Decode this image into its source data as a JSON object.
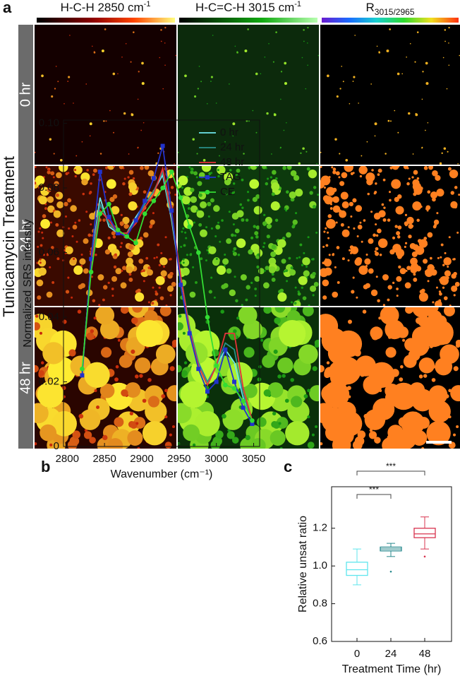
{
  "panel_a": {
    "label": "a",
    "columns": [
      {
        "text": "H-C-H 2850 cm",
        "sup": "-1"
      },
      {
        "text": "H-C=C-H 3015 cm",
        "sup": "-1"
      },
      {
        "text": "R",
        "sub": "3015/2965"
      }
    ],
    "rows": [
      "0 hr",
      "24 hr",
      "48 hr"
    ],
    "side_label": "Tunicamycin Treatment"
  },
  "chart_data": [
    {
      "type": "line",
      "label": "b",
      "x": [
        2820,
        2832,
        2844,
        2856,
        2868,
        2880,
        2892,
        2904,
        2916,
        2928,
        2940,
        2952,
        2964,
        2976,
        2988,
        3000,
        3012,
        3024,
        3036,
        3048
      ],
      "xlim": [
        2795,
        3058
      ],
      "xticks": [
        2800,
        2850,
        2900,
        2950,
        3000,
        3050
      ],
      "ylim": [
        0,
        0.101
      ],
      "yticks": [
        0,
        0.02,
        0.04,
        0.06,
        0.08,
        {
          "value": 0.1,
          "label": "0.10"
        }
      ],
      "xlabel": "Wavenumber (cm⁻¹)",
      "ylabel": "Normalized SRS intensity",
      "series": [
        {
          "name": "0 hr",
          "color": "#6fe6ec",
          "values": [
            0.023,
            0.057,
            0.077,
            0.068,
            0.066,
            0.066,
            0.071,
            0.075,
            0.079,
            0.084,
            0.07,
            0.052,
            0.037,
            0.026,
            0.02,
            0.025,
            0.03,
            0.026,
            0.015,
            0.008
          ]
        },
        {
          "name": "24 hr",
          "color": "#2a8f8a",
          "values": [
            0.023,
            0.057,
            0.075,
            0.069,
            0.066,
            0.066,
            0.07,
            0.075,
            0.079,
            0.085,
            0.071,
            0.053,
            0.037,
            0.026,
            0.02,
            0.025,
            0.032,
            0.03,
            0.016,
            0.008
          ]
        },
        {
          "name": "48 hr",
          "color": "#e4323a",
          "values": [
            0.023,
            0.056,
            0.073,
            0.07,
            0.066,
            0.066,
            0.069,
            0.074,
            0.078,
            0.086,
            0.072,
            0.053,
            0.036,
            0.025,
            0.019,
            0.025,
            0.035,
            0.035,
            0.018,
            0.008
          ]
        },
        {
          "name": "TAG",
          "color": "#2233cc",
          "marker": "square",
          "values": [
            0.022,
            0.058,
            0.085,
            0.071,
            0.066,
            0.065,
            0.07,
            0.076,
            0.083,
            0.093,
            0.073,
            0.05,
            0.035,
            0.024,
            0.017,
            0.02,
            0.03,
            0.02,
            0.012,
            0.007
          ]
        },
        {
          "name": "CE",
          "color": "#33dd33",
          "marker": "circle",
          "values": [
            0.024,
            0.054,
            0.072,
            0.075,
            0.067,
            0.065,
            0.063,
            0.072,
            0.076,
            0.08,
            0.085,
            0.077,
            0.068,
            0.06,
            0.04,
            0.025,
            0.019,
            0.018,
            0.014,
            0.008
          ]
        }
      ]
    },
    {
      "type": "box",
      "label": "c",
      "categories": [
        "0",
        "24",
        "48"
      ],
      "colors": [
        "#5fe6ee",
        "#2a8a8e",
        "#d8344f"
      ],
      "boxes": [
        {
          "min": 0.9,
          "q1": 0.95,
          "median": 0.98,
          "q3": 1.02,
          "max": 1.09,
          "outliers": []
        },
        {
          "min": 1.05,
          "q1": 1.08,
          "median": 1.09,
          "q3": 1.1,
          "max": 1.12,
          "outliers": [
            0.97
          ]
        },
        {
          "min": 1.09,
          "q1": 1.15,
          "median": 1.17,
          "q3": 1.2,
          "max": 1.26,
          "outliers": [
            1.05
          ]
        }
      ],
      "ylim": [
        0.6,
        1.42
      ],
      "yticks": [
        0.6,
        0.8,
        {
          "value": 1,
          "label": "1.0"
        },
        1.2
      ],
      "xlabel": "Treatment Time (hr)",
      "ylabel": "Relative unsat ratio",
      "annotations": [
        "***",
        "***"
      ]
    }
  ]
}
